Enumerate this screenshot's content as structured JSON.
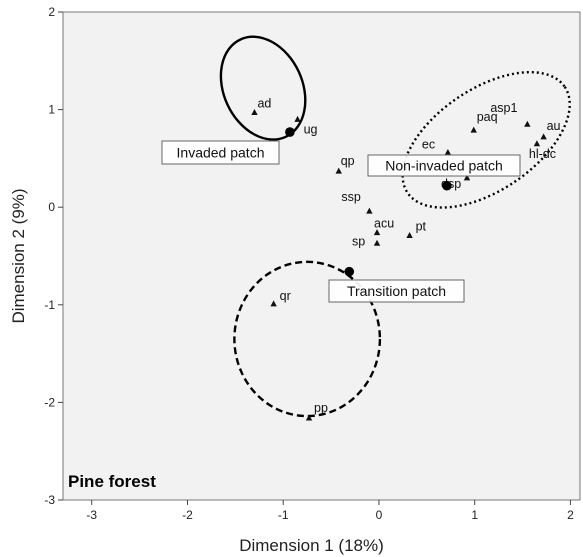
{
  "chart_data": {
    "type": "scatter",
    "title": "",
    "panel_label": "Pine forest",
    "xlabel": "Dimension 1 (18%)",
    "ylabel": "Dimension 2 (9%)",
    "xlim": [
      -3.3,
      2.1
    ],
    "ylim": [
      -3,
      2
    ],
    "xticks": [
      -3,
      -2,
      -1,
      0,
      1,
      2
    ],
    "yticks": [
      -3,
      -2,
      -1,
      0,
      1,
      2
    ],
    "grid": false,
    "background": "#f2f2f2",
    "species": [
      {
        "label": "ad",
        "x": -1.3,
        "y": 0.97
      },
      {
        "label": "ug",
        "x": -0.85,
        "y": 0.9
      },
      {
        "label": "qp",
        "x": -0.42,
        "y": 0.37
      },
      {
        "label": "ssp",
        "x": -0.1,
        "y": -0.04
      },
      {
        "label": "acu",
        "x": -0.02,
        "y": -0.26
      },
      {
        "label": "sp",
        "x": -0.02,
        "y": -0.37
      },
      {
        "label": "pt",
        "x": 0.32,
        "y": -0.29
      },
      {
        "label": "ec",
        "x": 0.72,
        "y": 0.56
      },
      {
        "label": "paq",
        "x": 0.99,
        "y": 0.79
      },
      {
        "label": "asp1",
        "x": 1.55,
        "y": 0.85
      },
      {
        "label": "au",
        "x": 1.72,
        "y": 0.72
      },
      {
        "label": "hl-dc",
        "x": 1.65,
        "y": 0.65
      },
      {
        "label": "dsp",
        "x": 0.92,
        "y": 0.3
      },
      {
        "label": "qr",
        "x": -1.1,
        "y": -0.99
      },
      {
        "label": "pp",
        "x": -0.73,
        "y": -2.16
      }
    ],
    "groups": [
      {
        "label": "Invaded patch",
        "x": -0.93,
        "y": 0.77,
        "ellipse": {
          "cx": -1.21,
          "cy": 1.22,
          "rx": 0.41,
          "ry": 0.55,
          "angle": -25
        },
        "style": "solid"
      },
      {
        "label": "Non-invaded patch",
        "x": 0.71,
        "y": 0.22,
        "ellipse": {
          "cx": 1.12,
          "cy": 0.69,
          "rx": 0.99,
          "ry": 0.52,
          "angle": -34
        },
        "style": "dotted"
      },
      {
        "label": "Transition patch",
        "x": -0.31,
        "y": -0.66,
        "ellipse": {
          "cx": -0.75,
          "cy": -1.35,
          "rx": 0.76,
          "ry": 0.79,
          "angle": 0
        },
        "style": "dashed"
      }
    ]
  }
}
